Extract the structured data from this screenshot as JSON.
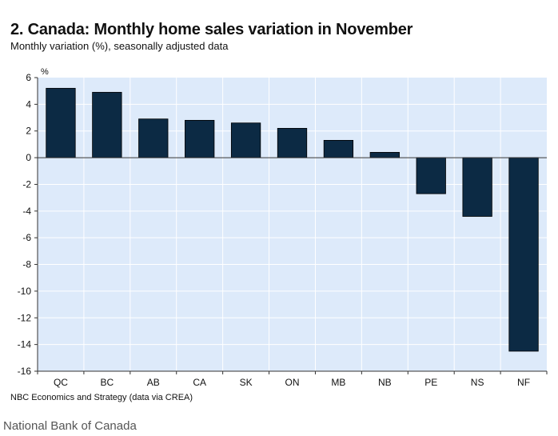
{
  "title": "2. Canada: Monthly home sales variation in November",
  "subtitle": "Monthly variation (%), seasonally adjusted data",
  "source": "NBC Economics and Strategy (data via CREA)",
  "credit": "National Bank of Canada",
  "colors": {
    "plot_background": "#ddeafa",
    "bar_fill": "#0c2a44",
    "grid": "#ffffff",
    "axis": "#333333"
  },
  "chart_data": {
    "type": "bar",
    "title": "2. Canada: Monthly home sales variation in November",
    "subtitle": "Monthly variation (%), seasonally adjusted data",
    "ylabel": "%",
    "xlabel": "",
    "categories": [
      "QC",
      "BC",
      "AB",
      "CA",
      "SK",
      "ON",
      "MB",
      "NB",
      "PE",
      "NS",
      "NF"
    ],
    "values": [
      5.2,
      4.9,
      2.9,
      2.8,
      2.6,
      2.2,
      1.3,
      0.4,
      -2.7,
      -4.4,
      -14.5
    ],
    "ylim": [
      -16,
      6
    ],
    "yticks": [
      6,
      4,
      2,
      0,
      -2,
      -4,
      -6,
      -8,
      -10,
      -12,
      -14,
      -16
    ],
    "grid": true,
    "legend": "none"
  }
}
